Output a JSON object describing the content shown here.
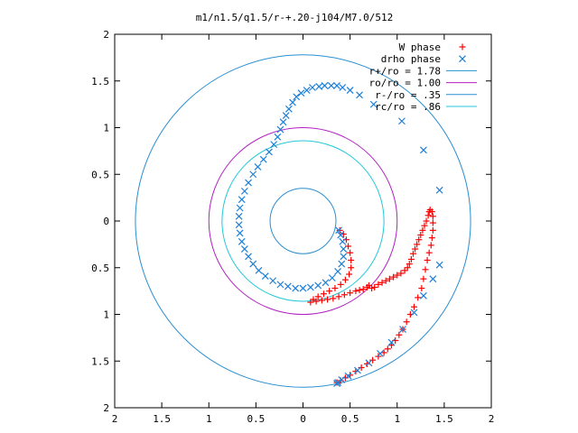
{
  "chart_data": {
    "type": "scatter",
    "title": "m1/n1.5/q1.5/r-+.20-j104/M7.0/512",
    "xlabel": "",
    "ylabel": "",
    "xlim": [
      -2,
      2
    ],
    "ylim": [
      -2,
      2
    ],
    "grid": false,
    "legend_position": "top-right",
    "x_ticks": [
      "2",
      "1.5",
      "1",
      "0.5",
      "0",
      "0.5",
      "1",
      "1.5",
      "2"
    ],
    "y_ticks": [
      "2",
      "1.5",
      "1",
      "0.5",
      "0",
      "0.5",
      "1",
      "1.5",
      "2"
    ],
    "series": [
      {
        "name": "W phase",
        "marker": "plus",
        "color": "#ff0000",
        "points": [
          [
            0.08,
            -0.87
          ],
          [
            0.14,
            -0.86
          ],
          [
            0.2,
            -0.85
          ],
          [
            0.26,
            -0.84
          ],
          [
            0.32,
            -0.83
          ],
          [
            0.38,
            -0.81
          ],
          [
            0.44,
            -0.79
          ],
          [
            0.5,
            -0.77
          ],
          [
            0.56,
            -0.75
          ],
          [
            0.6,
            -0.74
          ],
          [
            0.64,
            -0.73
          ],
          [
            0.68,
            -0.71
          ],
          [
            0.7,
            -0.69
          ],
          [
            0.73,
            -0.72
          ],
          [
            0.76,
            -0.71
          ],
          [
            0.8,
            -0.68
          ],
          [
            0.84,
            -0.66
          ],
          [
            0.88,
            -0.64
          ],
          [
            0.92,
            -0.62
          ],
          [
            0.96,
            -0.6
          ],
          [
            1.0,
            -0.58
          ],
          [
            1.04,
            -0.56
          ],
          [
            1.08,
            -0.53
          ],
          [
            1.11,
            -0.5
          ],
          [
            1.13,
            -0.46
          ],
          [
            1.15,
            -0.41
          ],
          [
            1.17,
            -0.35
          ],
          [
            1.19,
            -0.3
          ],
          [
            1.21,
            -0.25
          ],
          [
            1.23,
            -0.2
          ],
          [
            1.25,
            -0.15
          ],
          [
            1.27,
            -0.1
          ],
          [
            1.29,
            -0.05
          ],
          [
            1.31,
            0.0
          ],
          [
            1.33,
            0.06
          ],
          [
            1.34,
            0.1
          ],
          [
            1.35,
            0.12
          ],
          [
            1.37,
            0.1
          ],
          [
            1.38,
            0.05
          ],
          [
            1.38,
            -0.02
          ],
          [
            1.38,
            -0.1
          ],
          [
            1.37,
            -0.18
          ],
          [
            1.36,
            -0.26
          ],
          [
            1.34,
            -0.34
          ],
          [
            1.32,
            -0.42
          ],
          [
            1.3,
            -0.52
          ],
          [
            1.28,
            -0.62
          ],
          [
            1.26,
            -0.72
          ],
          [
            1.22,
            -0.82
          ],
          [
            1.18,
            -0.92
          ],
          [
            1.14,
            -1.0
          ],
          [
            1.1,
            -1.08
          ],
          [
            1.06,
            -1.16
          ],
          [
            1.02,
            -1.22
          ],
          [
            0.98,
            -1.28
          ],
          [
            0.94,
            -1.33
          ],
          [
            0.9,
            -1.37
          ],
          [
            0.86,
            -1.41
          ],
          [
            0.8,
            -1.45
          ],
          [
            0.74,
            -1.49
          ],
          [
            0.68,
            -1.53
          ],
          [
            0.62,
            -1.57
          ],
          [
            0.56,
            -1.61
          ],
          [
            0.5,
            -1.65
          ],
          [
            0.45,
            -1.68
          ],
          [
            0.4,
            -1.71
          ],
          [
            0.36,
            -1.73
          ],
          [
            0.39,
            -0.1
          ],
          [
            0.43,
            -0.14
          ],
          [
            0.46,
            -0.2
          ],
          [
            0.48,
            -0.27
          ],
          [
            0.5,
            -0.34
          ],
          [
            0.51,
            -0.42
          ],
          [
            0.51,
            -0.5
          ],
          [
            0.49,
            -0.57
          ],
          [
            0.45,
            -0.63
          ],
          [
            0.4,
            -0.68
          ],
          [
            0.34,
            -0.72
          ],
          [
            0.28,
            -0.75
          ],
          [
            0.22,
            -0.78
          ],
          [
            0.16,
            -0.81
          ],
          [
            0.11,
            -0.84
          ]
        ]
      },
      {
        "name": "drho phase",
        "marker": "cross",
        "color": "#1e7fd6",
        "points": [
          [
            0.38,
            -0.1
          ],
          [
            0.4,
            -0.15
          ],
          [
            0.42,
            -0.22
          ],
          [
            0.43,
            -0.3
          ],
          [
            0.43,
            -0.38
          ],
          [
            0.41,
            -0.46
          ],
          [
            0.37,
            -0.54
          ],
          [
            0.31,
            -0.61
          ],
          [
            0.24,
            -0.66
          ],
          [
            0.16,
            -0.69
          ],
          [
            0.08,
            -0.71
          ],
          [
            0.0,
            -0.72
          ],
          [
            -0.08,
            -0.72
          ],
          [
            -0.16,
            -0.7
          ],
          [
            -0.24,
            -0.68
          ],
          [
            -0.32,
            -0.64
          ],
          [
            -0.4,
            -0.59
          ],
          [
            -0.47,
            -0.53
          ],
          [
            -0.53,
            -0.46
          ],
          [
            -0.58,
            -0.38
          ],
          [
            -0.62,
            -0.3
          ],
          [
            -0.65,
            -0.22
          ],
          [
            -0.67,
            -0.13
          ],
          [
            -0.68,
            -0.04
          ],
          [
            -0.68,
            0.05
          ],
          [
            -0.67,
            0.14
          ],
          [
            -0.65,
            0.23
          ],
          [
            -0.62,
            0.32
          ],
          [
            -0.58,
            0.41
          ],
          [
            -0.53,
            0.5
          ],
          [
            -0.48,
            0.58
          ],
          [
            -0.42,
            0.66
          ],
          [
            -0.36,
            0.74
          ],
          [
            -0.31,
            0.82
          ],
          [
            -0.27,
            0.9
          ],
          [
            -0.24,
            0.98
          ],
          [
            -0.21,
            1.06
          ],
          [
            -0.18,
            1.13
          ],
          [
            -0.15,
            1.2
          ],
          [
            -0.11,
            1.27
          ],
          [
            -0.07,
            1.33
          ],
          [
            -0.02,
            1.37
          ],
          [
            0.04,
            1.4
          ],
          [
            0.1,
            1.43
          ],
          [
            0.17,
            1.44
          ],
          [
            0.23,
            1.45
          ],
          [
            0.3,
            1.45
          ],
          [
            0.36,
            1.45
          ],
          [
            0.42,
            1.43
          ],
          [
            0.5,
            1.4
          ],
          [
            0.6,
            1.35
          ],
          [
            0.75,
            1.25
          ],
          [
            1.05,
            1.07
          ],
          [
            1.28,
            0.76
          ],
          [
            1.45,
            0.33
          ],
          [
            1.45,
            -0.47
          ],
          [
            1.38,
            -0.62
          ],
          [
            1.28,
            -0.8
          ],
          [
            1.18,
            -0.98
          ],
          [
            1.06,
            -1.16
          ],
          [
            0.94,
            -1.3
          ],
          [
            0.82,
            -1.42
          ],
          [
            0.7,
            -1.52
          ],
          [
            0.58,
            -1.6
          ],
          [
            0.48,
            -1.66
          ],
          [
            0.41,
            -1.7
          ],
          [
            0.37,
            -1.73
          ],
          [
            0.36,
            -1.74
          ]
        ]
      }
    ],
    "circles": [
      {
        "name": "r+/ro = 1.78",
        "r": 1.78,
        "color": "#2a8ed0"
      },
      {
        "name": "ro/ro = 1.00",
        "r": 1.0,
        "color": "#b020c0"
      },
      {
        "name": "r-/ro = .35",
        "r": 0.35,
        "color": "#2a8ed0"
      },
      {
        "name": "rc/ro = .86",
        "r": 0.86,
        "color": "#20c8d8"
      }
    ]
  }
}
